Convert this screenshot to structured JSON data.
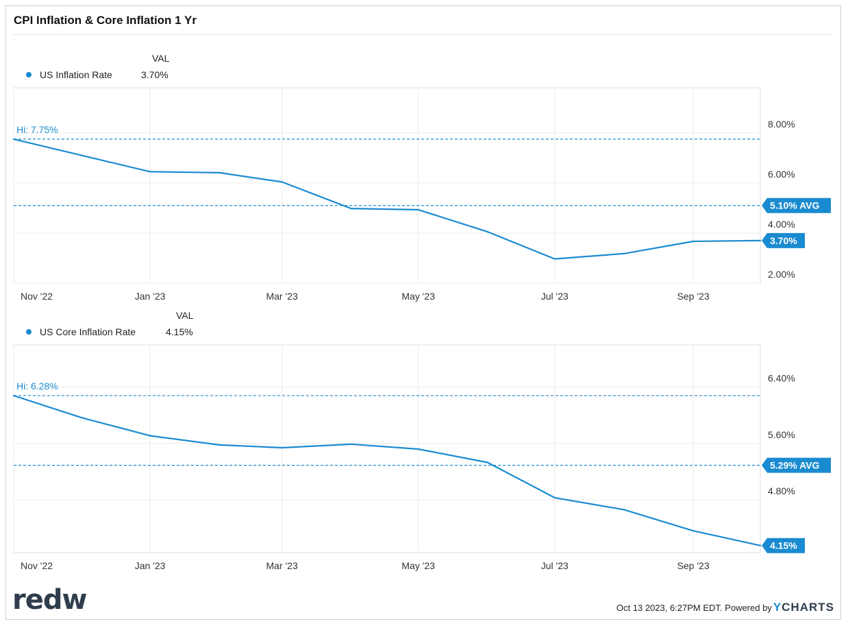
{
  "title": "CPI Inflation & Core Inflation 1 Yr",
  "colors": {
    "line": "#1a8bd0",
    "grid": "#ececec",
    "text": "#222222",
    "badge": "#1a8bd0"
  },
  "footer": {
    "timestamp": "Oct 13 2023, 6:27PM EDT. Powered by",
    "brand_y": "Y",
    "brand_rest": "CHARTS",
    "logo": "redw"
  },
  "chart_data": [
    {
      "type": "line",
      "legend_header": "VAL",
      "series": [
        {
          "name": "US Inflation Rate",
          "latest_label": "3.70%",
          "x": [
            "2022-10-31",
            "2022-11-30",
            "2022-12-31",
            "2023-01-31",
            "2023-02-28",
            "2023-03-31",
            "2023-04-30",
            "2023-05-31",
            "2023-06-30",
            "2023-07-31",
            "2023-08-31",
            "2023-09-30"
          ],
          "values": [
            7.75,
            7.11,
            6.45,
            6.41,
            6.04,
            4.98,
            4.93,
            4.05,
            2.97,
            3.18,
            3.67,
            3.7
          ]
        }
      ],
      "x_ticks": [
        "Nov '22",
        "Jan '23",
        "Mar '23",
        "May '23",
        "Jul '23",
        "Sep '23"
      ],
      "y_ticks": [
        "8.00%",
        "6.00%",
        "4.00%",
        "2.00%"
      ],
      "ylim": [
        2.0,
        9.8
      ],
      "hi_label": "Hi: 7.75%",
      "hi_value": 7.75,
      "avg_label": "5.10% AVG",
      "avg_value": 5.1,
      "last_label": "3.70%"
    },
    {
      "type": "line",
      "legend_header": "VAL",
      "series": [
        {
          "name": "US Core Inflation Rate",
          "latest_label": "4.15%",
          "x": [
            "2022-10-31",
            "2022-11-30",
            "2022-12-31",
            "2023-01-31",
            "2023-02-28",
            "2023-03-31",
            "2023-04-30",
            "2023-05-31",
            "2023-06-30",
            "2023-07-31",
            "2023-08-31",
            "2023-09-30"
          ],
          "values": [
            6.28,
            5.97,
            5.71,
            5.58,
            5.54,
            5.59,
            5.52,
            5.33,
            4.83,
            4.66,
            4.36,
            4.15
          ]
        }
      ],
      "x_ticks": [
        "Nov '22",
        "Jan '23",
        "Mar '23",
        "May '23",
        "Jul '23",
        "Sep '23"
      ],
      "y_ticks": [
        "6.40%",
        "5.60%",
        "4.80%"
      ],
      "ylim": [
        4.05,
        7.0
      ],
      "hi_label": "Hi: 6.28%",
      "hi_value": 6.28,
      "avg_label": "5.29% AVG",
      "avg_value": 5.29,
      "last_label": "4.15%"
    }
  ]
}
